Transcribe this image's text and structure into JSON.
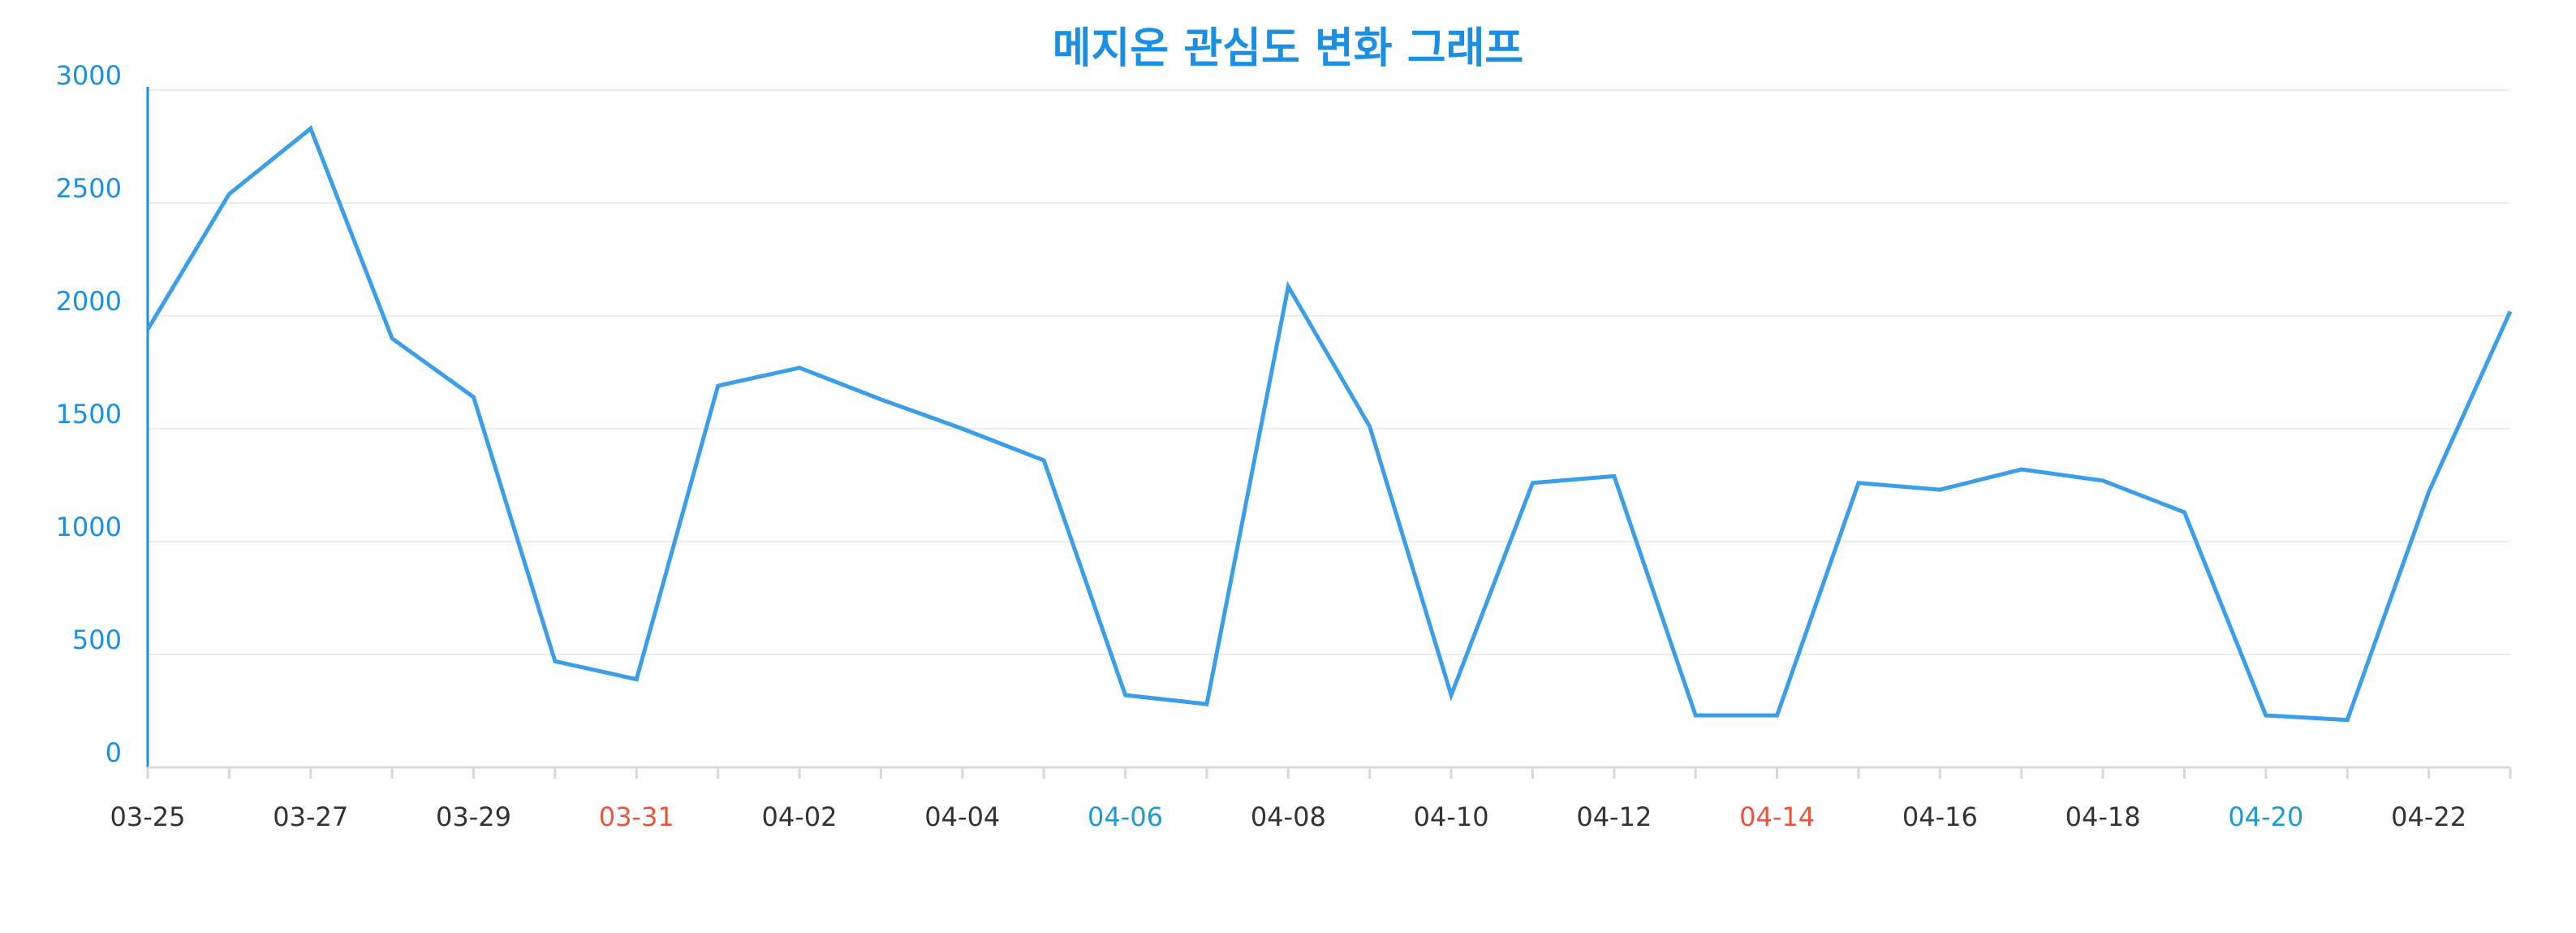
{
  "chart_data": {
    "type": "line",
    "title": "메지온 관심도 변화 그래프",
    "categories": [
      "03-25",
      null,
      "03-27",
      null,
      "03-29",
      null,
      "03-31",
      null,
      "04-02",
      null,
      "04-04",
      null,
      "04-06",
      null,
      "04-08",
      null,
      "04-10",
      null,
      "04-12",
      null,
      "04-14",
      null,
      "04-16",
      null,
      "04-18",
      null,
      "04-20",
      null,
      "04-22",
      null
    ],
    "category_label_colors": [
      "#333333",
      null,
      "#333333",
      null,
      "#333333",
      null,
      "#e8553a",
      null,
      "#333333",
      null,
      "#333333",
      null,
      "#1e9ad6",
      null,
      "#333333",
      null,
      "#333333",
      null,
      "#333333",
      null,
      "#e8553a",
      null,
      "#333333",
      null,
      "#333333",
      null,
      "#1e9ad6",
      null,
      "#333333",
      null
    ],
    "values": [
      1940,
      2540,
      2830,
      1900,
      1640,
      470,
      390,
      1690,
      1770,
      1630,
      1500,
      1360,
      320,
      280,
      2130,
      1510,
      320,
      1260,
      1290,
      230,
      230,
      1260,
      1230,
      1320,
      1270,
      1130,
      230,
      210,
      1220,
      2020
    ],
    "color": "#3a9ee8",
    "ylim": [
      0,
      3000
    ],
    "yticks": [
      0,
      500,
      1000,
      1500,
      2000,
      2500,
      3000
    ],
    "grid": true
  }
}
